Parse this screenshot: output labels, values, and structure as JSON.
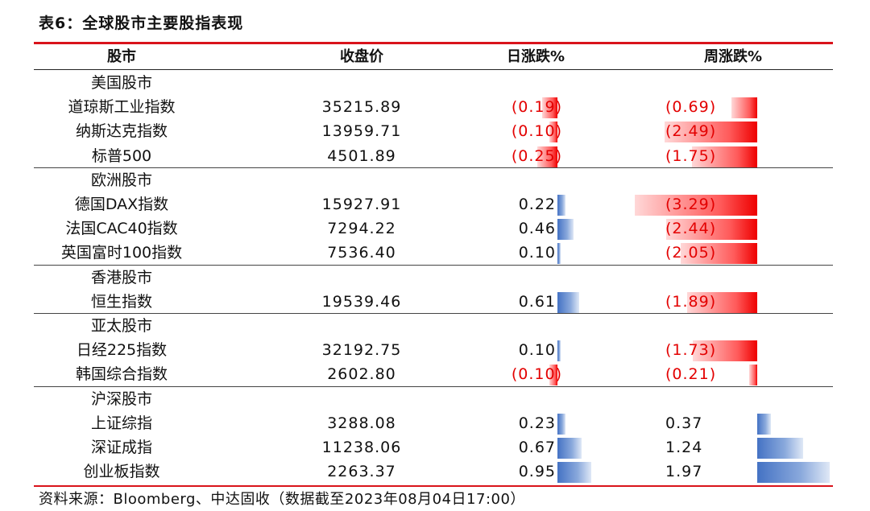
{
  "title": "表6：全球股市主要股指表现",
  "headers": {
    "name": "股市",
    "close": "收盘价",
    "daily": "日涨跌%",
    "weekly": "周涨跌%"
  },
  "groups": [
    {
      "label": "美国股市",
      "rows": [
        {
          "name": "道琼斯工业指数",
          "close": "35215.89",
          "daily": "(0.19)",
          "daily_value": -0.19,
          "weekly": "(0.69)",
          "weekly_value": -0.69
        },
        {
          "name": "纳斯达克指数",
          "close": "13959.71",
          "daily": "(0.10)",
          "daily_value": -0.1,
          "weekly": "(2.49)",
          "weekly_value": -2.49
        },
        {
          "name": "标普500",
          "close": "4501.89",
          "daily": "(0.25)",
          "daily_value": -0.25,
          "weekly": "(1.75)",
          "weekly_value": -1.75
        }
      ]
    },
    {
      "label": "欧洲股市",
      "rows": [
        {
          "name": "德国DAX指数",
          "close": "15927.91",
          "daily": "0.22",
          "daily_value": 0.22,
          "weekly": "(3.29)",
          "weekly_value": -3.29
        },
        {
          "name": "法国CAC40指数",
          "close": "7294.22",
          "daily": "0.46",
          "daily_value": 0.46,
          "weekly": "(2.44)",
          "weekly_value": -2.44
        },
        {
          "name": "英国富时100指数",
          "close": "7536.40",
          "daily": "0.10",
          "daily_value": 0.1,
          "weekly": "(2.05)",
          "weekly_value": -2.05
        }
      ]
    },
    {
      "label": "香港股市",
      "rows": [
        {
          "name": "恒生指数",
          "close": "19539.46",
          "daily": "0.61",
          "daily_value": 0.61,
          "weekly": "(1.89)",
          "weekly_value": -1.89
        }
      ]
    },
    {
      "label": "亚太股市",
      "rows": [
        {
          "name": "日经225指数",
          "close": "32192.75",
          "daily": "0.10",
          "daily_value": 0.1,
          "weekly": "(1.73)",
          "weekly_value": -1.73
        },
        {
          "name": "韩国综合指数",
          "close": "2602.80",
          "daily": "(0.10)",
          "daily_value": -0.1,
          "weekly": "(0.21)",
          "weekly_value": -0.21
        }
      ]
    },
    {
      "label": "沪深股市",
      "rows": [
        {
          "name": "上证综指",
          "close": "3288.08",
          "daily": "0.23",
          "daily_value": 0.23,
          "weekly": "0.37",
          "weekly_value": 0.37
        },
        {
          "name": "深证成指",
          "close": "11238.06",
          "daily": "0.67",
          "daily_value": 0.67,
          "weekly": "1.24",
          "weekly_value": 1.24
        },
        {
          "name": "创业板指数",
          "close": "2263.37",
          "daily": "0.95",
          "daily_value": 0.95,
          "weekly": "1.97",
          "weekly_value": 1.97
        }
      ]
    }
  ],
  "source": "资料来源：Bloomberg、中达固收（数据截至2023年08月04日17:00）",
  "colors": {
    "accent_red": "#d9131b",
    "negative_text": "#e30000",
    "negative_bar": "#ee0000",
    "positive_bar": "#4472c4"
  }
}
